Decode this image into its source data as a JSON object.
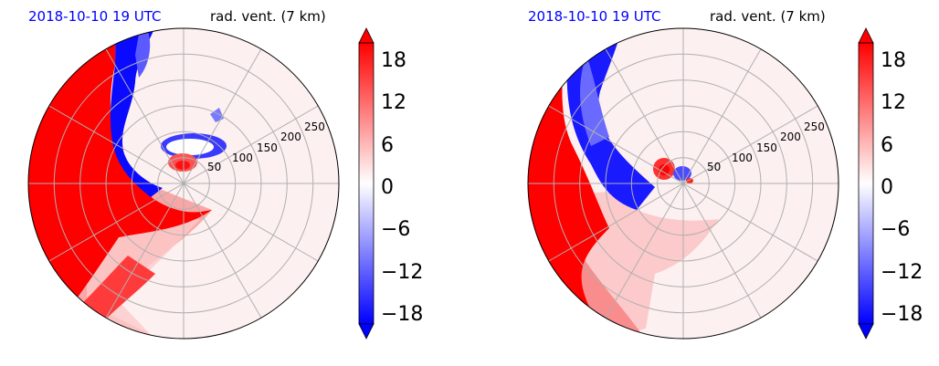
{
  "chart_data": [
    {
      "type": "heatmap",
      "projection": "polar",
      "title_left": "2018-10-10 19 UTC",
      "title_right": "rad. vent. (7 km)",
      "r_ticks": [
        50,
        100,
        150,
        200,
        250
      ],
      "r_max": 300,
      "angular_gridlines_deg": [
        0,
        30,
        60,
        90,
        120,
        150,
        180,
        210,
        240,
        270,
        300,
        330
      ],
      "colorbar": {
        "min": -20,
        "max": 20,
        "ticks": [
          18,
          12,
          6,
          0,
          -6,
          -12,
          -18
        ],
        "tick_labels": [
          "18",
          "12",
          "6",
          "0",
          "−6",
          "−12",
          "−18"
        ],
        "cmap": "bwr",
        "extend": "both"
      },
      "regions": [
        {
          "name": "west positive sector",
          "value": 20
        },
        {
          "name": "narrow negative band",
          "value": -20
        },
        {
          "name": "southwest positive gradient",
          "value": 10
        },
        {
          "name": "east background",
          "value": 1
        },
        {
          "name": "core positive",
          "value": 15
        },
        {
          "name": "core negative ring",
          "value": -12
        }
      ]
    },
    {
      "type": "heatmap",
      "projection": "polar",
      "title_left": "2018-10-10 19 UTC",
      "title_right": "rad. vent. (7 km)",
      "r_ticks": [
        50,
        100,
        150,
        200,
        250
      ],
      "r_max": 300,
      "angular_gridlines_deg": [
        0,
        30,
        60,
        90,
        120,
        150,
        180,
        210,
        240,
        270,
        300,
        330
      ],
      "colorbar": {
        "min": -20,
        "max": 20,
        "ticks": [
          18,
          12,
          6,
          0,
          -6,
          -12,
          -18
        ],
        "tick_labels": [
          "18",
          "12",
          "6",
          "0",
          "−6",
          "−12",
          "−18"
        ],
        "cmap": "bwr",
        "extend": "both"
      },
      "regions": [
        {
          "name": "west positive sector",
          "value": 20
        },
        {
          "name": "wide negative band",
          "value": -20
        },
        {
          "name": "southwest positive gradient",
          "value": 10
        },
        {
          "name": "east background",
          "value": 1
        },
        {
          "name": "core positive",
          "value": 14
        },
        {
          "name": "core negative",
          "value": -14
        }
      ]
    }
  ]
}
